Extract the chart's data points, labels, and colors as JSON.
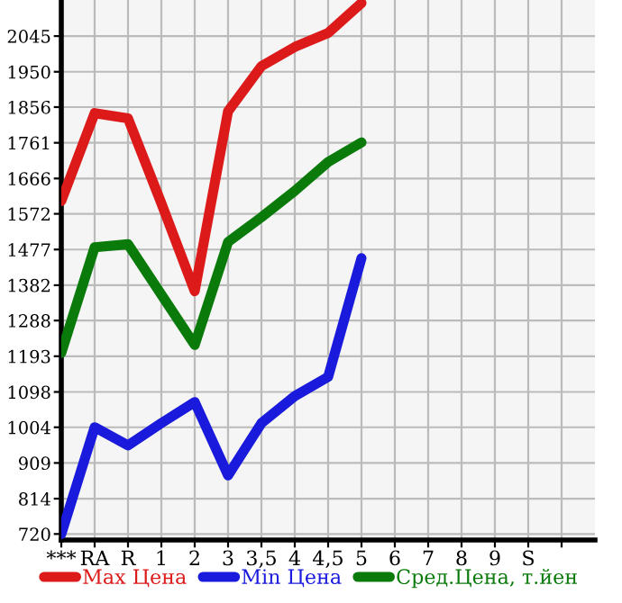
{
  "chart_data": {
    "type": "line",
    "categories": [
      "***",
      "RA",
      "R",
      "1",
      "2",
      "3",
      "3,5",
      "4",
      "4,5",
      "5",
      "6",
      "7",
      "8",
      "9",
      "S",
      null
    ],
    "series": [
      {
        "name": "Max Цена",
        "color": "#dd1a1a",
        "values": [
          1606,
          1840,
          1826,
          1600,
          1366,
          1845,
          1965,
          2016,
          2053,
          2133,
          null,
          null,
          null,
          null,
          null,
          null
        ]
      },
      {
        "name": "Min Цена",
        "color": "#1a1add",
        "values": [
          720,
          1004,
          956,
          1015,
          1071,
          876,
          1015,
          1087,
          1138,
          1454,
          null,
          null,
          null,
          null,
          null,
          null
        ]
      },
      {
        "name": "Сред.Цена, т.йен",
        "color": "#0a7a0a",
        "values": [
          1202,
          1483,
          1491,
          1357,
          1223,
          1497,
          1563,
          1633,
          1710,
          1762,
          null,
          null,
          null,
          null,
          null,
          null
        ]
      }
    ],
    "ylim": [
      704,
      2141
    ],
    "yticks": [
      720,
      814,
      909,
      1004,
      1098,
      1193,
      1288,
      1382,
      1477,
      1572,
      1666,
      1761,
      1856,
      1950,
      2045
    ],
    "grid": true,
    "legend": "bottom",
    "marker": "none",
    "line_style": "solid"
  }
}
